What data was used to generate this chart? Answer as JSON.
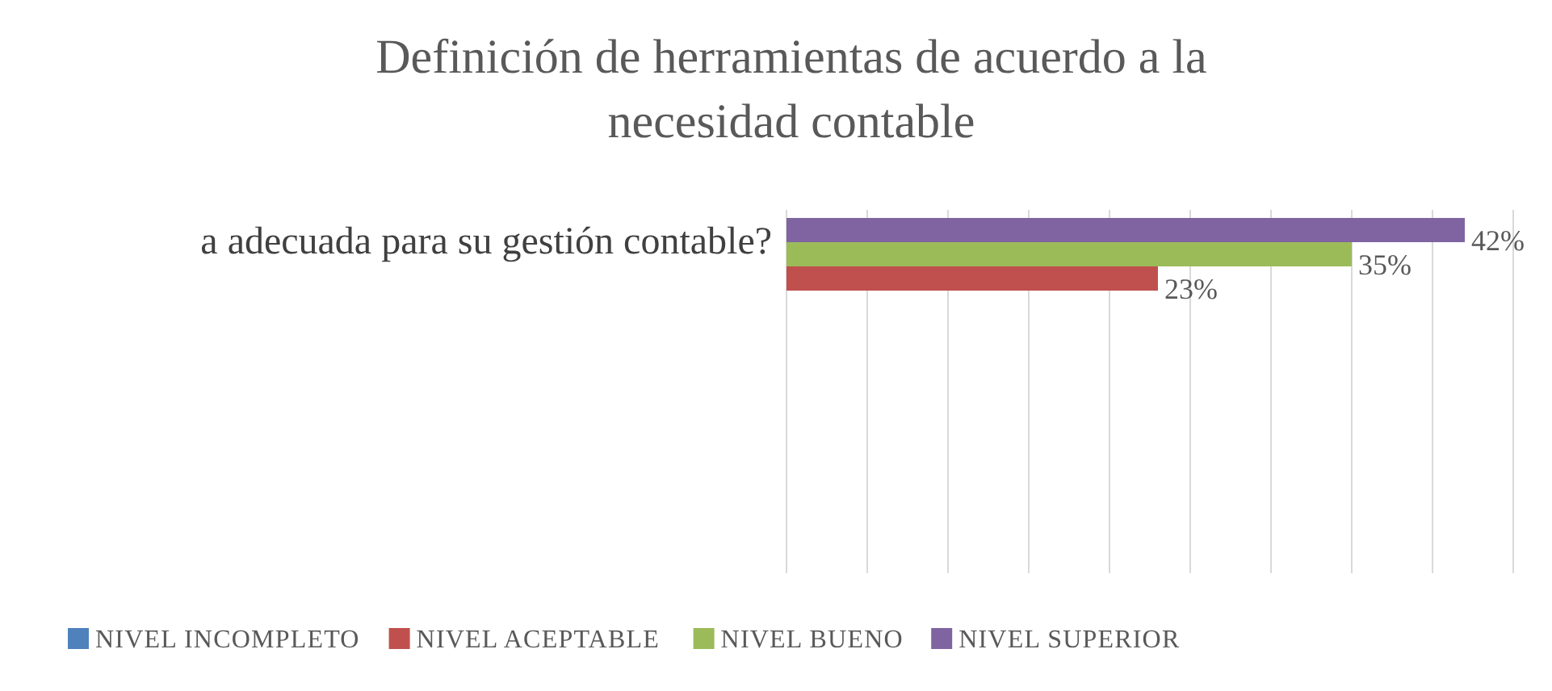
{
  "chart_data": {
    "type": "bar",
    "orientation": "horizontal",
    "title": "Definición de herramientas de acuerdo a la necesidad contable",
    "categories": [
      "a adecuada para su gestión contable?"
    ],
    "series": [
      {
        "name": "NIVEL INCOMPLETO",
        "color": "#4f81bd",
        "values": [
          null
        ],
        "value_labels": [
          null
        ]
      },
      {
        "name": "NIVEL ACEPTABLE",
        "color": "#c0504d",
        "values": [
          23
        ],
        "value_labels": [
          "23%"
        ]
      },
      {
        "name": "NIVEL BUENO",
        "color": "#9bbb59",
        "values": [
          35
        ],
        "value_labels": [
          "35%"
        ]
      },
      {
        "name": "NIVEL SUPERIOR",
        "color": "#8064a2",
        "values": [
          42
        ],
        "value_labels": [
          "42%"
        ]
      }
    ],
    "xlim": [
      0,
      45
    ],
    "xticks": [
      {
        "value": 0,
        "label": null
      },
      {
        "value": 5,
        "label": null
      },
      {
        "value": 10,
        "label": null
      },
      {
        "value": 15,
        "label": null
      },
      {
        "value": 20,
        "label": null
      },
      {
        "value": 25,
        "label": null
      },
      {
        "value": 30,
        "label": null
      },
      {
        "value": 35,
        "label": null
      },
      {
        "value": 40,
        "label": null
      },
      {
        "value": 45,
        "label": null
      }
    ],
    "tick_labels": "y",
    "grid": "x",
    "legend": "bottom"
  }
}
